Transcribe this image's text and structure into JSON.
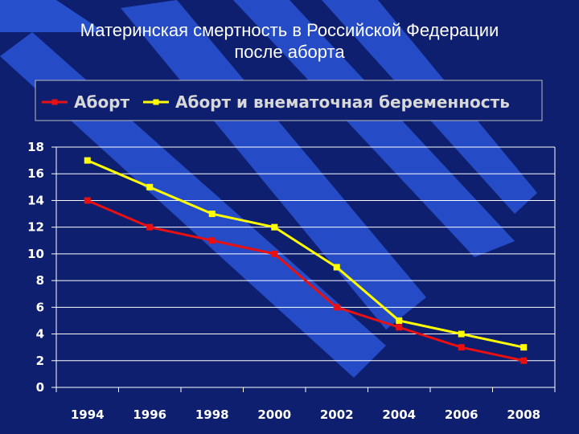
{
  "title_line1": "Материнская смертность в Российской Федерации",
  "title_line2": "после аборта",
  "colors": {
    "background": "#0d1f6e",
    "stripe": "#2a55d6",
    "grid": "#ffffff",
    "series_abort": "#e81010",
    "series_abort_ectopic": "#ffff00"
  },
  "chart_data": {
    "type": "line",
    "x": [
      "1994",
      "1996",
      "1998",
      "2000",
      "2002",
      "2004",
      "2006",
      "2008"
    ],
    "series": [
      {
        "name": "Аборт",
        "values": [
          14,
          12,
          11,
          10,
          6,
          4.5,
          3,
          2
        ]
      },
      {
        "name": "Аборт и внематочная беременность",
        "values": [
          17,
          15,
          13,
          12,
          9,
          5,
          4,
          3
        ]
      }
    ],
    "ylim": [
      0,
      18
    ],
    "yticks": [
      0,
      2,
      4,
      6,
      8,
      10,
      12,
      14,
      16,
      18
    ],
    "grid": true,
    "legend_position": "top",
    "xlabel": "",
    "ylabel": ""
  }
}
